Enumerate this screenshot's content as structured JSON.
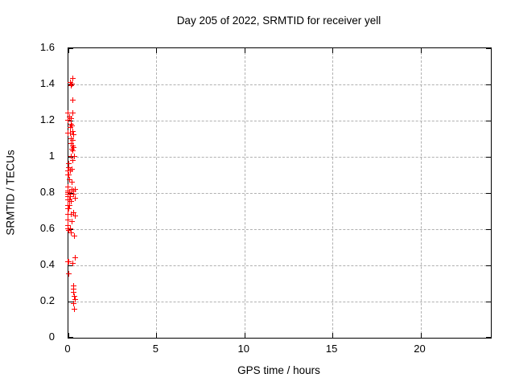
{
  "title": "Day 205 of 2022, SRMTID for receiver yell",
  "colors": {
    "marker": "#ff0000",
    "grid": "#b0b0b0",
    "border": "#000000",
    "background": "#ffffff"
  },
  "chart_data": {
    "type": "scatter",
    "title": "Day 205 of 2022, SRMTID for receiver yell",
    "xlabel": "GPS time / hours",
    "ylabel": "SRMTID / TECUs",
    "xlim": [
      0,
      24
    ],
    "ylim": [
      0,
      1.6
    ],
    "xticks": [
      0,
      5,
      10,
      15,
      20
    ],
    "xtick_labels": [
      "0",
      "5",
      "10",
      "15",
      "20"
    ],
    "yticks": [
      0,
      0.2,
      0.4,
      0.6,
      0.8,
      1.0,
      1.2,
      1.4,
      1.6
    ],
    "ytick_labels": [
      "0",
      "0.2",
      "0.4",
      "0.6",
      "0.8",
      "1",
      "1.2",
      "1.4",
      "1.6"
    ],
    "grid": true,
    "legend": "none",
    "marker": {
      "shape": "plus",
      "color": "#ff0000",
      "size": 7
    },
    "points": [
      [
        0.27,
        1.43
      ],
      [
        0.15,
        1.41
      ],
      [
        0.24,
        1.4
      ],
      [
        0.2,
        1.39
      ],
      [
        0.27,
        1.31
      ],
      [
        0.02,
        1.24
      ],
      [
        0.27,
        1.24
      ],
      [
        0.09,
        1.22
      ],
      [
        0.18,
        1.21
      ],
      [
        0.01,
        1.2
      ],
      [
        0.18,
        1.18
      ],
      [
        0.24,
        1.17
      ],
      [
        0.12,
        1.16
      ],
      [
        0.27,
        1.14
      ],
      [
        0.02,
        1.13
      ],
      [
        0.15,
        1.13
      ],
      [
        0.32,
        1.12
      ],
      [
        0.18,
        1.1
      ],
      [
        0.27,
        1.09
      ],
      [
        0.18,
        1.07
      ],
      [
        0.27,
        1.06
      ],
      [
        0.32,
        1.05
      ],
      [
        0.23,
        1.04
      ],
      [
        0.27,
        1.03
      ],
      [
        0.18,
        1.0
      ],
      [
        0.37,
        1.0
      ],
      [
        0.27,
        0.98
      ],
      [
        0.05,
        0.96
      ],
      [
        0.05,
        0.94
      ],
      [
        0.23,
        0.93
      ],
      [
        0.0,
        0.92
      ],
      [
        0.14,
        0.92
      ],
      [
        0.0,
        0.9
      ],
      [
        0.05,
        0.9
      ],
      [
        0.09,
        0.87
      ],
      [
        0.23,
        0.86
      ],
      [
        0.0,
        0.83
      ],
      [
        0.23,
        0.82
      ],
      [
        0.41,
        0.82
      ],
      [
        0.02,
        0.81
      ],
      [
        0.32,
        0.81
      ],
      [
        0.0,
        0.8
      ],
      [
        0.09,
        0.8
      ],
      [
        0.02,
        0.79
      ],
      [
        0.32,
        0.79
      ],
      [
        0.14,
        0.78
      ],
      [
        0.0,
        0.78
      ],
      [
        0.41,
        0.77
      ],
      [
        0.09,
        0.76
      ],
      [
        0.02,
        0.76
      ],
      [
        0.18,
        0.75
      ],
      [
        0.0,
        0.73
      ],
      [
        0.09,
        0.73
      ],
      [
        0.0,
        0.71
      ],
      [
        0.05,
        0.71
      ],
      [
        0.32,
        0.69
      ],
      [
        0.0,
        0.68
      ],
      [
        0.18,
        0.68
      ],
      [
        0.41,
        0.67
      ],
      [
        0.0,
        0.65
      ],
      [
        0.23,
        0.64
      ],
      [
        0.0,
        0.62
      ],
      [
        0.02,
        0.6
      ],
      [
        0.14,
        0.6
      ],
      [
        0.05,
        0.59
      ],
      [
        0.18,
        0.58
      ],
      [
        0.37,
        0.56
      ],
      [
        0.41,
        0.44
      ],
      [
        0.0,
        0.42
      ],
      [
        0.05,
        0.42
      ],
      [
        0.27,
        0.41
      ],
      [
        0.05,
        0.35
      ],
      [
        0.32,
        0.285
      ],
      [
        0.32,
        0.265
      ],
      [
        0.32,
        0.25
      ],
      [
        0.35,
        0.227
      ],
      [
        0.4,
        0.21
      ],
      [
        0.32,
        0.185
      ],
      [
        0.35,
        0.155
      ]
    ]
  }
}
